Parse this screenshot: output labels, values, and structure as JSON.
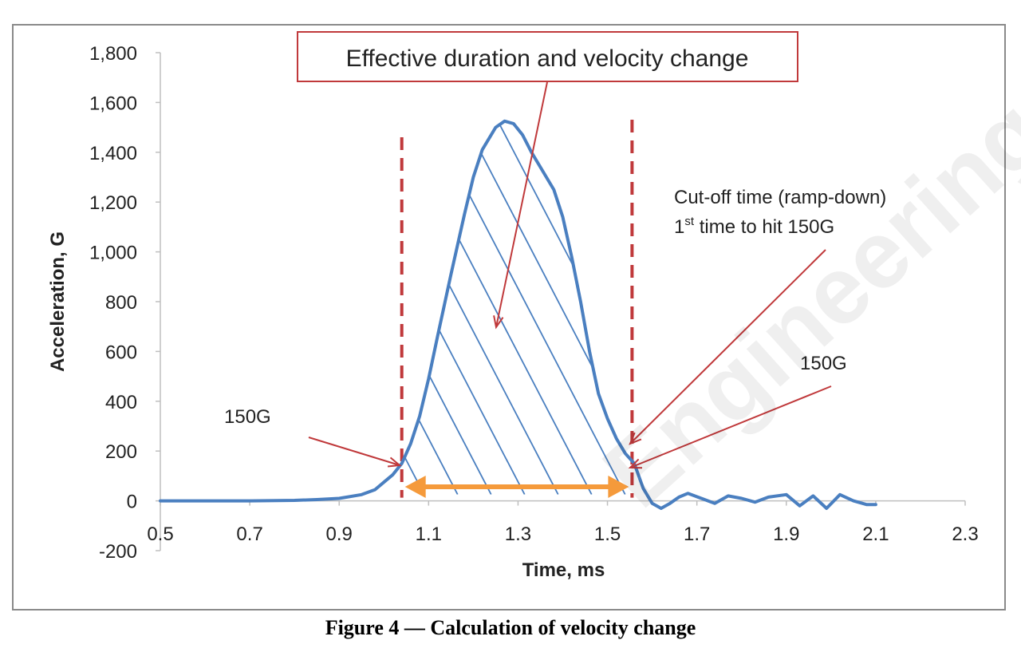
{
  "figure": {
    "caption": "Figure 4 — Calculation of velocity change",
    "watermark": "Engineering"
  },
  "annotations": {
    "box_title": "Effective duration and velocity change",
    "cutoff_line1": "Cut-off time (ramp-down)",
    "cutoff_line2_num": "1",
    "cutoff_line2_sup": "st",
    "cutoff_line2_rest": " time to hit 150G",
    "label_150g_left": "150G",
    "label_150g_right": "150G"
  },
  "colors": {
    "curve": "#4a7fc0",
    "hatch": "#4a7fc0",
    "cutoff_line": "#c0393b",
    "arrow": "#c0393b",
    "duration_arrow": "#f59a3b",
    "axis": "#bfbfbf"
  },
  "chart_data": {
    "type": "line",
    "title": "",
    "xlabel": "Time, ms",
    "ylabel": "Acceleration, G",
    "xlim": [
      0.5,
      2.3
    ],
    "ylim": [
      -200,
      1800
    ],
    "xticks": [
      "0.5",
      "0.7",
      "0.9",
      "1.1",
      "1.3",
      "1.5",
      "1.7",
      "1.9",
      "2.1",
      "2.3"
    ],
    "yticks": [
      "-200",
      "0",
      "200",
      "400",
      "600",
      "800",
      "1,000",
      "1,200",
      "1,400",
      "1,600",
      "1,800"
    ],
    "grid": false,
    "legend": "none",
    "series": [
      {
        "x": [
          0.5,
          0.6,
          0.7,
          0.8,
          0.85,
          0.9,
          0.95,
          0.98,
          1.0,
          1.02,
          1.04,
          1.06,
          1.08,
          1.1,
          1.12,
          1.15,
          1.18,
          1.2,
          1.22,
          1.25,
          1.27,
          1.29,
          1.31,
          1.33,
          1.35,
          1.38,
          1.4,
          1.42,
          1.44,
          1.46,
          1.48,
          1.5,
          1.52,
          1.54,
          1.56,
          1.58,
          1.6,
          1.62,
          1.64,
          1.66,
          1.68,
          1.71,
          1.74,
          1.77,
          1.8,
          1.83,
          1.86,
          1.9,
          1.93,
          1.96,
          1.99,
          2.02,
          2.05,
          2.08,
          2.1
        ],
        "y": [
          0,
          0,
          0,
          2,
          5,
          10,
          25,
          45,
          75,
          105,
          150,
          230,
          340,
          490,
          660,
          910,
          1150,
          1300,
          1410,
          1500,
          1525,
          1515,
          1470,
          1400,
          1340,
          1250,
          1140,
          980,
          800,
          600,
          430,
          330,
          250,
          190,
          150,
          50,
          -10,
          -30,
          -10,
          15,
          30,
          10,
          -10,
          20,
          10,
          -5,
          15,
          25,
          -20,
          20,
          -30,
          25,
          0,
          -15,
          -15
        ]
      }
    ],
    "cutoff_times": [
      1.04,
      1.555
    ],
    "threshold": 150,
    "shaded_region": [
      1.04,
      1.555
    ]
  }
}
